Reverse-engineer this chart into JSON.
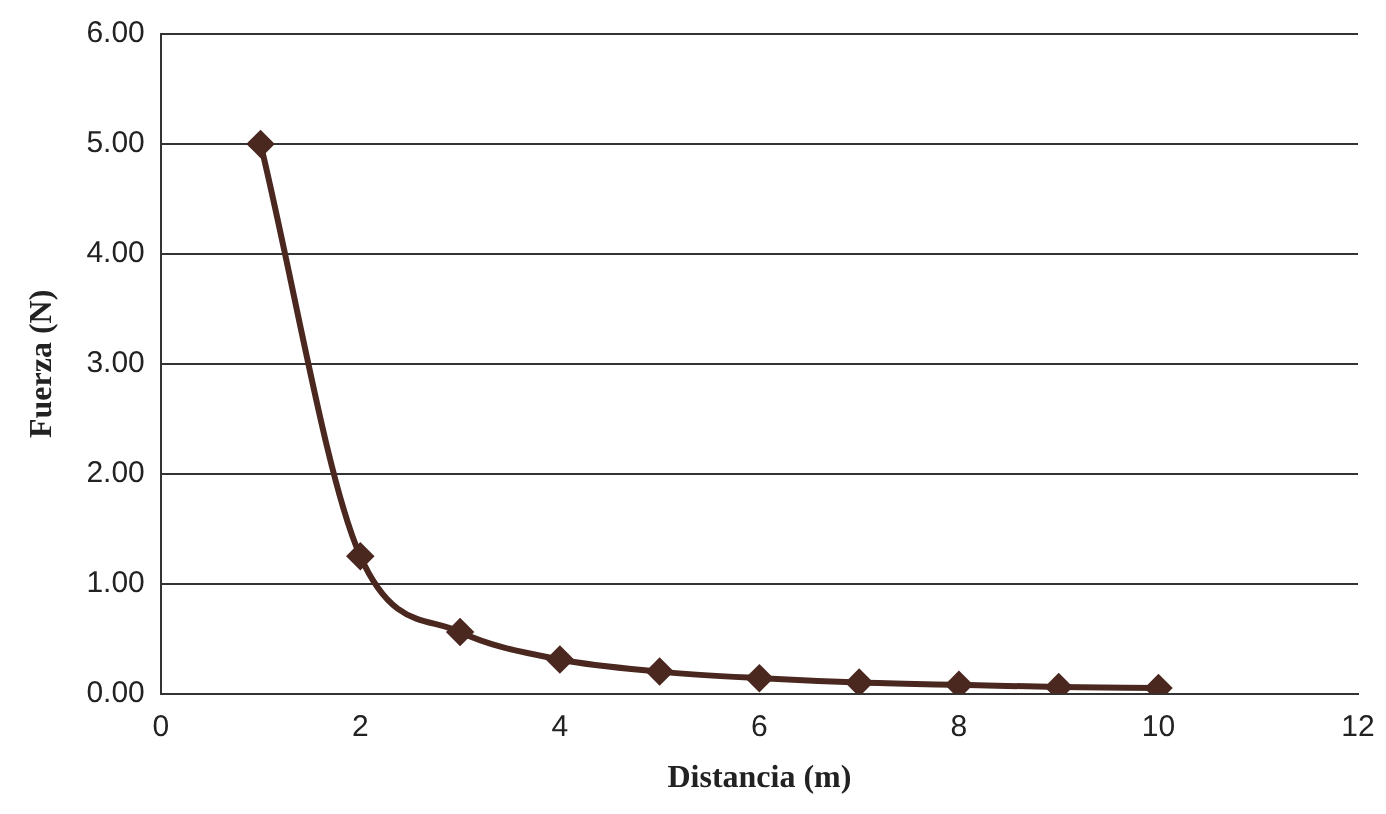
{
  "chart_data": {
    "type": "line",
    "xlabel": "Distancia (m)",
    "ylabel": "Fuerza (N)",
    "x": [
      1,
      2,
      3,
      4,
      5,
      6,
      7,
      8,
      9,
      10
    ],
    "series": [
      {
        "color": "#4a2820",
        "values": [
          5,
          1.25,
          0.56,
          0.31,
          0.2,
          0.14,
          0.1,
          0.08,
          0.06,
          0.05
        ]
      }
    ],
    "xlim": [
      0,
      12
    ],
    "xticks": [
      0,
      2,
      4,
      6,
      8,
      10,
      12
    ],
    "ylim": [
      0,
      6
    ],
    "yticks": [
      {
        "value": 0,
        "label": "0.00"
      },
      {
        "value": 1,
        "label": "1.00"
      },
      {
        "value": 2,
        "label": "2.00"
      },
      {
        "value": 3,
        "label": "3.00"
      },
      {
        "value": 4,
        "label": "4.00"
      },
      {
        "value": 5,
        "label": "5.00"
      },
      {
        "value": 6,
        "label": "6.00"
      }
    ],
    "grid": "y",
    "legend": false,
    "marker": "diamond",
    "line_style": "solid"
  }
}
